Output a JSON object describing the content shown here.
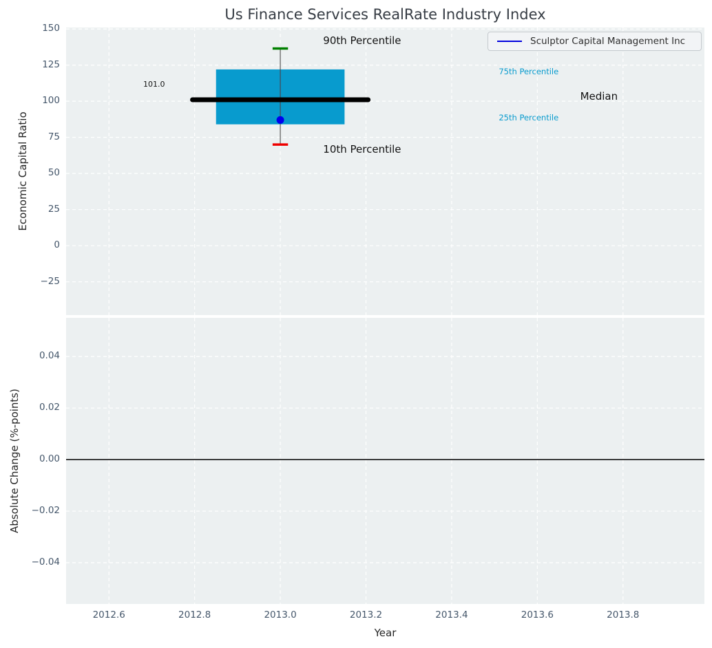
{
  "figure": {
    "title": "Us Finance Services RealRate Industry Index",
    "xlabel": "Year",
    "background": "#ffffff",
    "plot_background": "#ecf0f1",
    "gridline_color": "#ffffff",
    "tick_color": "#44566a"
  },
  "legend": {
    "label": "Sculptor Capital Management Inc",
    "line_color": "#0000dd"
  },
  "chart_data": [
    {
      "type": "box",
      "name": "economic-capital-ratio",
      "title": "Us Finance Services RealRate Industry Index",
      "ylabel": "Economic Capital Ratio",
      "xlabel": "Year",
      "xlim": [
        2012.5,
        2013.99
      ],
      "ylim": [
        -48,
        151
      ],
      "xtick_values": [
        2012.6,
        2012.8,
        2013.0,
        2013.2,
        2013.4,
        2013.6,
        2013.8
      ],
      "xtick_labels": [
        "2012.6",
        "2012.8",
        "2013.0",
        "2013.2",
        "2013.4",
        "2013.6",
        "2013.8"
      ],
      "ytick_values": [
        150,
        125,
        100,
        75,
        50,
        25,
        0,
        -25
      ],
      "ytick_labels": [
        "150",
        "125",
        "100",
        "75",
        "50",
        "25",
        "0",
        "−25"
      ],
      "show_xtick_labels": false,
      "grid": true,
      "legend_position": "upper right",
      "box": {
        "x": 2013.0,
        "median": 101.0,
        "p75": 122,
        "p25": 84,
        "p90": 136.5,
        "p10": 70,
        "company_value": 87,
        "box_half_width": 0.15,
        "median_half_width": 0.205,
        "cap_half_width": 0.018
      },
      "colors": {
        "box_fill": "#089bce",
        "median_line": "#000000",
        "whisker": "#777777",
        "p90_cap": "#008000",
        "p10_cap": "#ee0000",
        "company_marker": "#0000ee"
      },
      "series": [
        {
          "name": "Sculptor Capital Management Inc",
          "x": [
            2013.0
          ],
          "y": [
            87
          ]
        }
      ],
      "annotations": [
        {
          "text": "90th Percentile",
          "x": 2013.1,
          "y": 141,
          "color": "#111111",
          "size": 15
        },
        {
          "text": "10th Percentile",
          "x": 2013.1,
          "y": 66,
          "color": "#111111",
          "size": 15
        },
        {
          "text": "75th Percentile",
          "x": 2013.51,
          "y": 120,
          "color": "#089bce",
          "size": 11.5
        },
        {
          "text": "25th Percentile",
          "x": 2013.51,
          "y": 88,
          "color": "#089bce",
          "size": 11.5
        },
        {
          "text": "Median",
          "x": 2013.7,
          "y": 102.5,
          "color": "#111111",
          "size": 15
        },
        {
          "text": "101.0",
          "x": 2012.68,
          "y": 111,
          "color": "#111111",
          "size": 11
        }
      ]
    },
    {
      "type": "line",
      "name": "absolute-change",
      "ylabel": "Absolute Change (%-points)",
      "xlabel": "Year",
      "xlim": [
        2012.5,
        2013.99
      ],
      "ylim": [
        -0.056,
        0.055
      ],
      "xtick_values": [
        2012.6,
        2012.8,
        2013.0,
        2013.2,
        2013.4,
        2013.6,
        2013.8
      ],
      "xtick_labels": [
        "2012.6",
        "2012.8",
        "2013.0",
        "2013.2",
        "2013.4",
        "2013.6",
        "2013.8"
      ],
      "ytick_values": [
        0.04,
        0.02,
        0.0,
        -0.02,
        -0.04
      ],
      "ytick_labels": [
        "0.04",
        "0.02",
        "0.00",
        "−0.02",
        "−0.04"
      ],
      "show_xtick_labels": true,
      "grid": true,
      "zero_line": 0.0,
      "zero_line_color": "#000000",
      "series": []
    }
  ]
}
